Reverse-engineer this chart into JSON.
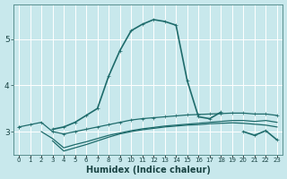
{
  "xlabel": "Humidex (Indice chaleur)",
  "background_color": "#c8e8ec",
  "grid_color": "#ffffff",
  "line_color": "#1e6b6b",
  "x_values": [
    0,
    1,
    2,
    3,
    4,
    5,
    6,
    7,
    8,
    9,
    10,
    11,
    12,
    13,
    14,
    15,
    16,
    17,
    18,
    19,
    20,
    21,
    22,
    23
  ],
  "line1_y": [
    3.1,
    3.15,
    3.2,
    3.0,
    2.95,
    3.0,
    3.05,
    3.1,
    3.15,
    3.2,
    3.25,
    3.28,
    3.3,
    3.32,
    3.34,
    3.36,
    3.37,
    3.38,
    3.39,
    3.4,
    3.4,
    3.38,
    3.38,
    3.35
  ],
  "line2_y": [
    null,
    null,
    3.0,
    2.85,
    2.65,
    2.72,
    2.78,
    2.85,
    2.92,
    2.97,
    3.02,
    3.06,
    3.09,
    3.12,
    3.14,
    3.16,
    3.18,
    3.2,
    3.22,
    3.24,
    3.24,
    3.22,
    3.24,
    3.2
  ],
  "line3_y": [
    null,
    null,
    null,
    2.8,
    2.58,
    2.65,
    2.72,
    2.8,
    2.88,
    2.95,
    3.0,
    3.04,
    3.07,
    3.1,
    3.12,
    3.14,
    3.15,
    3.17,
    3.18,
    3.19,
    3.18,
    3.16,
    3.14,
    3.1
  ],
  "line4_y": [
    3.1,
    null,
    null,
    3.05,
    3.1,
    3.2,
    3.35,
    3.5,
    4.2,
    4.75,
    5.18,
    5.32,
    5.42,
    5.38,
    5.3,
    4.1,
    3.32,
    3.28,
    3.42,
    null,
    3.0,
    2.92,
    3.02,
    2.82
  ],
  "ylim": [
    2.5,
    5.75
  ],
  "yticks": [
    3,
    4,
    5
  ],
  "xlim": [
    -0.5,
    23.5
  ]
}
